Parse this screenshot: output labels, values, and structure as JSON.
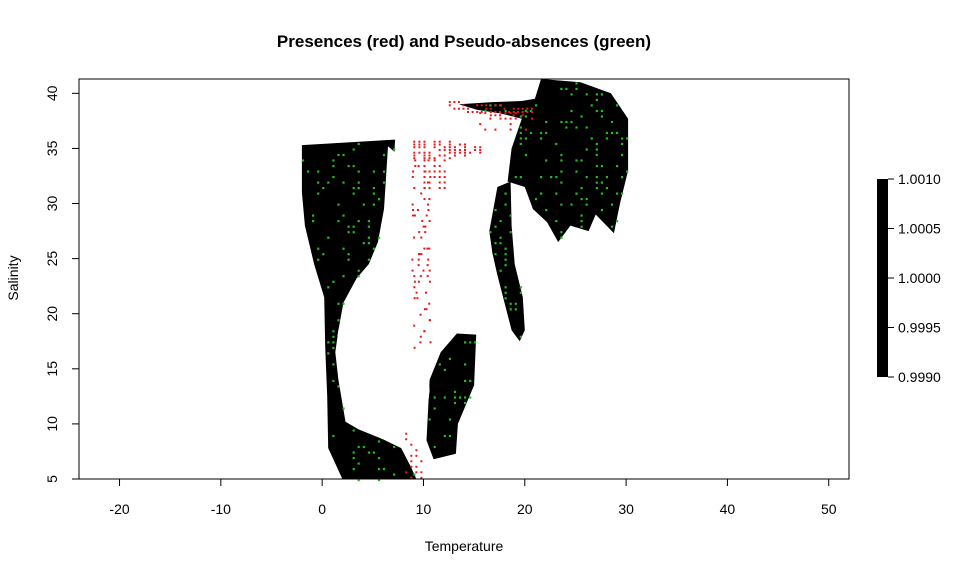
{
  "chart_data": {
    "type": "heatmap",
    "title": "Presences (red) and Pseudo-absences (green)",
    "xlabel": "Temperature",
    "ylabel": "Salinity",
    "xlim": [
      -24,
      52
    ],
    "ylim": [
      5,
      41.3
    ],
    "xticks": [
      -20,
      -10,
      0,
      10,
      20,
      30,
      40,
      50
    ],
    "yticks": [
      5,
      10,
      15,
      20,
      25,
      30,
      35,
      40
    ],
    "cell_size": {
      "dx": 0.5,
      "dy": 0.5
    },
    "grid": false,
    "colors": {
      "background_raster": "#000000",
      "presences": "#e41a1c",
      "pseudo_absences": "#22bb22",
      "gap_white": "#ffffff"
    },
    "background_raster_regions": [
      {
        "name": "left-west-block",
        "points": [
          [
            -2,
            35.3
          ],
          [
            7.2,
            35.8
          ],
          [
            7,
            32.5
          ],
          [
            6.5,
            29
          ],
          [
            6.3,
            25.5
          ],
          [
            4.8,
            24.5
          ],
          [
            3.2,
            22
          ],
          [
            2.4,
            20.5
          ],
          [
            1.6,
            18.5
          ],
          [
            1.3,
            16.5
          ],
          [
            1.6,
            14
          ],
          [
            2.3,
            10.2
          ],
          [
            3.6,
            9.5
          ],
          [
            6,
            8.6
          ],
          [
            7.8,
            7.8
          ],
          [
            8.7,
            6.2
          ],
          [
            9.3,
            5
          ],
          [
            2,
            5
          ],
          [
            0.6,
            7.8
          ],
          [
            0.5,
            12.5
          ],
          [
            0.3,
            17
          ],
          [
            0.2,
            21.5
          ],
          [
            -0.8,
            24.5
          ],
          [
            -1.7,
            28
          ],
          [
            -2,
            31
          ]
        ]
      },
      {
        "name": "central-lower-block",
        "points": [
          [
            10.6,
            14
          ],
          [
            11.7,
            16.5
          ],
          [
            13.3,
            18.2
          ],
          [
            15.2,
            18.1
          ],
          [
            15,
            13.5
          ],
          [
            13.4,
            10
          ],
          [
            13.2,
            7.3
          ],
          [
            11,
            6.8
          ],
          [
            10.3,
            8.5
          ]
        ]
      },
      {
        "name": "mid-east-arm",
        "points": [
          [
            16.5,
            27.5
          ],
          [
            17.3,
            31.5
          ],
          [
            18.6,
            32
          ],
          [
            18.7,
            28
          ],
          [
            19,
            24.5
          ],
          [
            19.8,
            21.5
          ],
          [
            20,
            18.5
          ],
          [
            19.5,
            17.5
          ],
          [
            18.7,
            18.5
          ],
          [
            18,
            21
          ],
          [
            17.3,
            23.5
          ],
          [
            16.8,
            25.5
          ]
        ]
      },
      {
        "name": "upper-east-block",
        "points": [
          [
            13.5,
            39
          ],
          [
            16.8,
            39.2
          ],
          [
            19.7,
            39.3
          ],
          [
            21,
            39.5
          ],
          [
            21.6,
            41.3
          ],
          [
            25.5,
            41
          ],
          [
            28.5,
            40
          ],
          [
            30.2,
            37.7
          ],
          [
            30.2,
            33
          ],
          [
            29.4,
            30
          ],
          [
            28.8,
            27.3
          ],
          [
            27,
            29
          ],
          [
            26.3,
            27.5
          ],
          [
            24.5,
            28
          ],
          [
            23.3,
            26.5
          ],
          [
            22.2,
            28.3
          ],
          [
            20.8,
            29.5
          ],
          [
            20,
            31.5
          ],
          [
            18.3,
            32
          ],
          [
            18.7,
            35
          ],
          [
            19.7,
            37.7
          ],
          [
            17.5,
            38.2
          ],
          [
            15.3,
            38.5
          ]
        ]
      }
    ],
    "white_gaps": [
      {
        "name": "central-white-channel",
        "points": [
          [
            6.5,
            35.2
          ],
          [
            8,
            34
          ],
          [
            9,
            30
          ],
          [
            9.8,
            28
          ],
          [
            10.2,
            24
          ],
          [
            10.4,
            20
          ],
          [
            10.3,
            17
          ],
          [
            10.6,
            13
          ],
          [
            10.2,
            10
          ],
          [
            9.8,
            8
          ],
          [
            9,
            7.5
          ],
          [
            8.4,
            9.2
          ],
          [
            6.2,
            10.5
          ],
          [
            5.6,
            13.2
          ],
          [
            4.3,
            15.5
          ],
          [
            2.3,
            15.8
          ],
          [
            1.5,
            18
          ],
          [
            2.1,
            21
          ],
          [
            3.4,
            23.2
          ],
          [
            4.6,
            24.5
          ],
          [
            5.5,
            26.5
          ],
          [
            6.1,
            29.5
          ]
        ]
      }
    ],
    "presences": {
      "upper-plume": {
        "x_range": [
          9,
          15.8
        ],
        "y_range": [
          34,
          35.7
        ]
      },
      "upper-arm": {
        "x_range": [
          12.5,
          21
        ],
        "y_range": [
          37.5,
          39.3
        ]
      },
      "central-column": {
        "x_range": [
          8.2,
          11
        ],
        "y_range": [
          17,
          34
        ]
      },
      "lower-patch": {
        "x_range": [
          8,
          10
        ],
        "y_range": [
          5.2,
          9.2
        ]
      }
    },
    "colorbar": {
      "labels": [
        "1.0010",
        "1.0005",
        "1.0000",
        "0.9995",
        "0.9990"
      ],
      "values": [
        1.001,
        1.0005,
        1.0,
        0.9995,
        0.999
      ],
      "color": "#000000"
    }
  }
}
